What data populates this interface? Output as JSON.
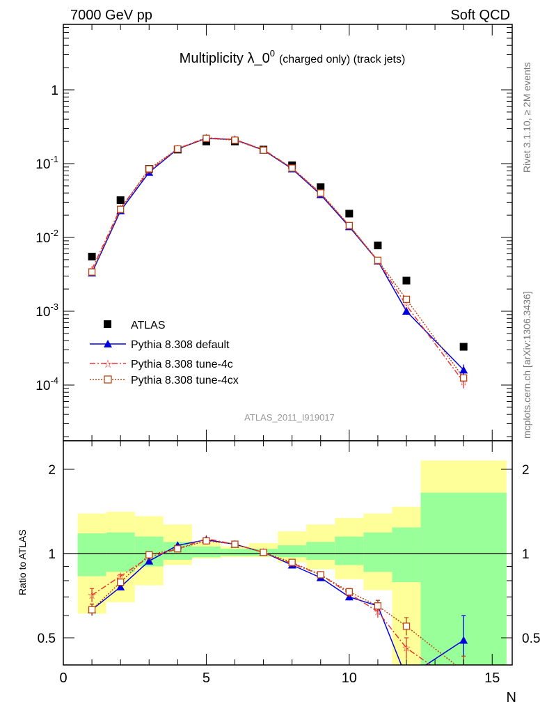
{
  "header": {
    "left": "7000 GeV pp",
    "right": "Soft QCD"
  },
  "title": {
    "main": "Multiplicity λ_0",
    "superscript": "0",
    "suffix": "(charged only) (track jets)"
  },
  "side_labels": {
    "rivet": "Rivet 3.1.10, ≥ 2M events",
    "mcplots": "mcplots.cern.ch [arXiv:1306.3436]"
  },
  "analysis_tag": "ATLAS_2011_I919017",
  "colors": {
    "atlas": "#000000",
    "default": "#0000dd",
    "tune4c": "#ee3333",
    "tune4cx": "#bb4411",
    "band_inner": "#99ff99",
    "band_outer": "#ffff99"
  },
  "chart_data": [
    {
      "type": "line",
      "panel": "main",
      "yscale": "log",
      "xlim": [
        0,
        15.7
      ],
      "ylim": [
        1e-05,
        5
      ],
      "y_tick_labels": [
        "10^-4",
        "10^-3",
        "10^-2",
        "10^-1",
        "1"
      ],
      "series": [
        {
          "name": "ATLAS",
          "style": "data",
          "x": [
            1,
            2,
            3,
            4,
            5,
            6,
            7,
            8,
            9,
            10,
            11,
            12,
            14
          ],
          "y": [
            0.0055,
            0.032,
            0.085,
            0.155,
            0.2,
            0.2,
            0.155,
            0.095,
            0.048,
            0.021,
            0.0078,
            0.0026,
            0.00033
          ]
        },
        {
          "name": "Pythia 8.308 default",
          "style": "triangle",
          "x": [
            1,
            2,
            3,
            4,
            5,
            6,
            7,
            8,
            9,
            10,
            11,
            12,
            14
          ],
          "y": [
            0.0033,
            0.023,
            0.076,
            0.158,
            0.22,
            0.212,
            0.152,
            0.085,
            0.038,
            0.014,
            0.0048,
            0.001,
            0.00016
          ],
          "yerr": [
            0,
            0,
            0,
            0,
            0,
            0,
            0,
            0,
            0,
            0,
            0,
            0,
            3e-05
          ]
        },
        {
          "name": "Pythia 8.308 tune-4c",
          "style": "star",
          "x": [
            1,
            2,
            3,
            4,
            5,
            6,
            7,
            8,
            9,
            10,
            11,
            12,
            14
          ],
          "y": [
            0.0037,
            0.025,
            0.08,
            0.16,
            0.225,
            0.212,
            0.155,
            0.087,
            0.039,
            0.0145,
            0.0048,
            0.0012,
            0.00011
          ],
          "yerr": [
            0,
            0,
            0,
            0,
            0,
            0,
            0,
            0,
            0,
            0,
            0,
            0,
            2e-05
          ]
        },
        {
          "name": "Pythia 8.308 tune-4cx",
          "style": "square-open",
          "x": [
            1,
            2,
            3,
            4,
            5,
            6,
            7,
            8,
            9,
            10,
            11,
            12,
            14
          ],
          "y": [
            0.0034,
            0.024,
            0.085,
            0.158,
            0.22,
            0.208,
            0.152,
            0.087,
            0.04,
            0.0145,
            0.0049,
            0.00145,
            0.000125
          ]
        }
      ],
      "legend": "bottom-left"
    },
    {
      "type": "line",
      "panel": "ratio",
      "ylabel": "Ratio to ATLAS",
      "xlabel": "N",
      "xlim": [
        0,
        15.7
      ],
      "ylim": [
        0.35,
        2.3
      ],
      "x_tick_labels": [
        "0",
        "5",
        "10",
        "15"
      ],
      "y_tick_labels": [
        "0.5",
        "1",
        "2"
      ],
      "bands": {
        "bin_edges": [
          0.5,
          1.5,
          2.5,
          3.5,
          4.5,
          5.5,
          6.5,
          7.5,
          8.5,
          9.5,
          10.5,
          11.5,
          12.5,
          15.5
        ],
        "inner_lo": [
          0.83,
          0.86,
          0.9,
          0.95,
          0.97,
          0.98,
          0.98,
          0.97,
          0.95,
          0.91,
          0.86,
          0.79,
          0.3
        ],
        "inner_hi": [
          1.18,
          1.19,
          1.15,
          1.1,
          1.06,
          1.04,
          1.04,
          1.07,
          1.1,
          1.15,
          1.19,
          1.24,
          1.65
        ],
        "outer_lo": [
          0.61,
          0.67,
          0.77,
          0.91,
          0.96,
          0.97,
          0.97,
          0.93,
          0.88,
          0.81,
          0.74,
          0.3,
          0.3
        ],
        "outer_hi": [
          1.39,
          1.41,
          1.36,
          1.27,
          1.1,
          1.06,
          1.09,
          1.2,
          1.27,
          1.34,
          1.39,
          1.47,
          2.15
        ]
      },
      "series": [
        {
          "name": "Pythia 8.308 default",
          "style": "triangle",
          "x": [
            1,
            2,
            3,
            4,
            5,
            6,
            7,
            8,
            9,
            10,
            11,
            12,
            14
          ],
          "y": [
            0.63,
            0.76,
            0.94,
            1.07,
            1.12,
            1.08,
            1.01,
            0.91,
            0.82,
            0.7,
            0.65,
            0.36,
            0.49
          ],
          "yerr": [
            0.03,
            0.01,
            0,
            0,
            0,
            0,
            0,
            0,
            0,
            0.02,
            0.03,
            0.03,
            0.11
          ]
        },
        {
          "name": "Pythia 8.308 tune-4c",
          "style": "star",
          "x": [
            1,
            2,
            3,
            4,
            5,
            6,
            7,
            8,
            9,
            10,
            11,
            12,
            14
          ],
          "y": [
            0.71,
            0.83,
            0.97,
            1.04,
            1.13,
            1.08,
            1.01,
            0.92,
            0.84,
            0.72,
            0.62,
            0.46,
            0.33
          ],
          "yerr": [
            0.04,
            0.01,
            0,
            0,
            0,
            0,
            0,
            0,
            0,
            0.02,
            0.03,
            0.04,
            0.05
          ]
        },
        {
          "name": "Pythia 8.308 tune-4cx",
          "style": "square-open",
          "x": [
            1,
            2,
            3,
            4,
            5,
            6,
            7,
            8,
            9,
            10,
            11,
            12,
            14
          ],
          "y": [
            0.63,
            0.79,
            0.99,
            1.04,
            1.11,
            1.08,
            1.01,
            0.93,
            0.84,
            0.73,
            0.65,
            0.55,
            0.38
          ],
          "yerr": [
            0.03,
            0.01,
            0,
            0,
            0,
            0,
            0,
            0,
            0,
            0.02,
            0.03,
            0.04,
            0.05
          ]
        }
      ]
    }
  ]
}
